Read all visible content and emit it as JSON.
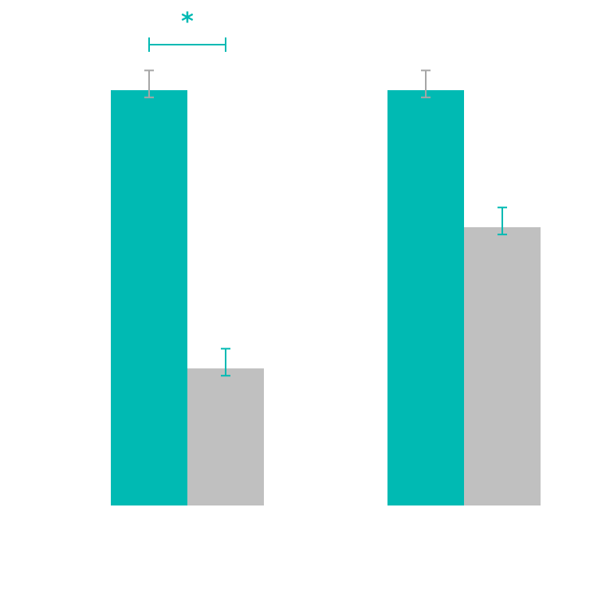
{
  "chart_data": {
    "type": "bar",
    "categories": [
      "",
      ""
    ],
    "series": [
      {
        "values": [
          100,
          100
        ],
        "errors": [
          6.5,
          6.5
        ],
        "color": "#00bab3",
        "error_color": "#a6a6a6"
      },
      {
        "values": [
          33,
          67
        ],
        "errors": [
          6.5,
          6.5
        ],
        "color": "#c0c0c0",
        "error_color": "#00bab3"
      }
    ],
    "ylim": [
      0,
      110
    ],
    "grid": false,
    "legend": "none",
    "annotations": [
      {
        "group": 0,
        "between_series": [
          0,
          1
        ],
        "text": "*",
        "color": "#00bab3"
      }
    ]
  }
}
